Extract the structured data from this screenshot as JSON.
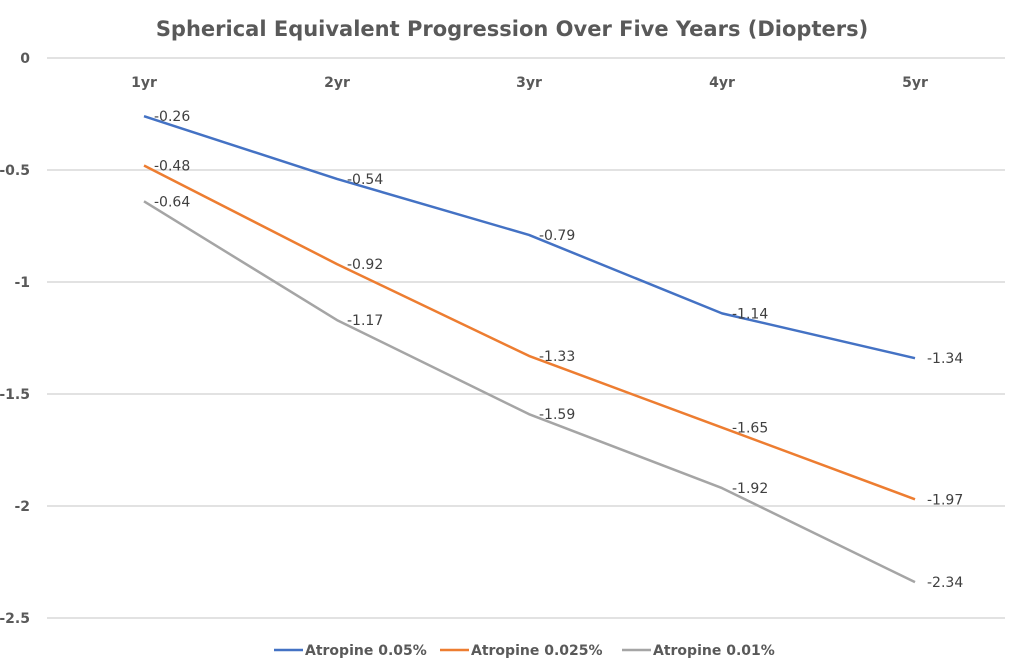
{
  "chart_data": {
    "type": "line",
    "title": "Spherical Equivalent Progression Over Five Years (Diopters)",
    "xlabel": "",
    "ylabel": "",
    "categories": [
      "1yr",
      "2yr",
      "3yr",
      "4yr",
      "5yr"
    ],
    "ylim": [
      -2.5,
      0
    ],
    "yticks": [
      0,
      -0.5,
      -1,
      -1.5,
      -2,
      -2.5
    ],
    "ytick_labels": [
      "0",
      "-0.5",
      "-1",
      "-1.5",
      "-2",
      "-2.5"
    ],
    "x_axis_position": "top",
    "grid": true,
    "legend": "bottom",
    "series": [
      {
        "name": "Atropine 0.05%",
        "color": "#4472C4",
        "values": [
          -0.26,
          -0.54,
          -0.79,
          -1.14,
          -1.34
        ]
      },
      {
        "name": "Atropine 0.025%",
        "color": "#ED7D31",
        "values": [
          -0.48,
          -0.92,
          -1.33,
          -1.65,
          -1.97
        ]
      },
      {
        "name": "Atropine 0.01%",
        "color": "#A5A5A5",
        "values": [
          -0.64,
          -1.17,
          -1.59,
          -1.92,
          -2.34
        ]
      }
    ]
  }
}
